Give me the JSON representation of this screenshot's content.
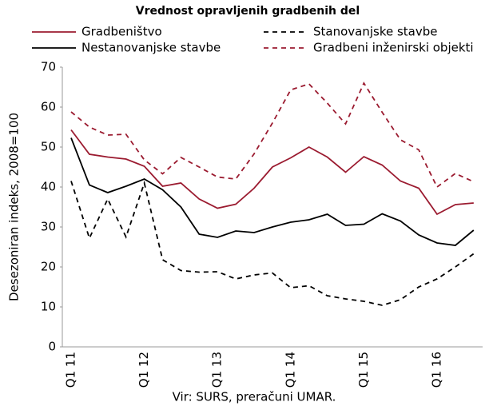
{
  "chart_data": {
    "type": "line",
    "title": "Vrednost opravljenih gradbenih del",
    "y_label": "Desezoniran indeks, 2008=100",
    "source": "Vir: SURS, preračuni UMAR.",
    "categories": [
      "Q1 11",
      null,
      null,
      null,
      "Q1 12",
      null,
      null,
      null,
      "Q1 13",
      null,
      null,
      null,
      "Q1 14",
      null,
      null,
      null,
      "Q1 15",
      null,
      null,
      null,
      "Q1 16",
      null,
      null
    ],
    "ylim": [
      0,
      70
    ],
    "yticks": [
      0,
      10,
      20,
      30,
      40,
      50,
      60,
      70
    ],
    "grid": false,
    "series": [
      {
        "name": "Gradbeništvo",
        "color": "#9b1b30",
        "dash": false,
        "values": [
          54.3,
          48.2,
          47.5,
          47,
          45.2,
          40.2,
          41,
          37,
          34.7,
          35.7,
          39.7,
          45,
          47.3,
          50,
          47.5,
          43.7,
          47.6,
          45.5,
          41.5,
          39.7,
          33.2,
          35.6,
          36
        ]
      },
      {
        "name": "Stanovanjske stavbe",
        "color": "#000000",
        "dash": true,
        "values": [
          41.5,
          27.2,
          37,
          27.5,
          41,
          21.8,
          19.1,
          18.7,
          18.8,
          17,
          18,
          18.5,
          14.8,
          15.3,
          12.8,
          12,
          11.4,
          10.4,
          11.8,
          15,
          17,
          20,
          23.3
        ]
      },
      {
        "name": "Nestanovanjske stavbe",
        "color": "#000000",
        "dash": false,
        "values": [
          52.3,
          40.5,
          38.6,
          40.2,
          42,
          39.3,
          35,
          28.2,
          27.4,
          29,
          28.6,
          30,
          31.2,
          31.8,
          33.2,
          30.4,
          30.7,
          33.3,
          31.5,
          28,
          26,
          25.4,
          29.2
        ]
      },
      {
        "name": "Gradbeni inženirski objekti",
        "color": "#9b1b30",
        "dash": true,
        "values": [
          58.8,
          55,
          53,
          53.2,
          46.8,
          43.3,
          47.4,
          45,
          42.5,
          42,
          48.3,
          56,
          64.3,
          65.8,
          61,
          55.8,
          66,
          58.7,
          51.8,
          49.3,
          40,
          43.4,
          41.3
        ]
      }
    ]
  }
}
